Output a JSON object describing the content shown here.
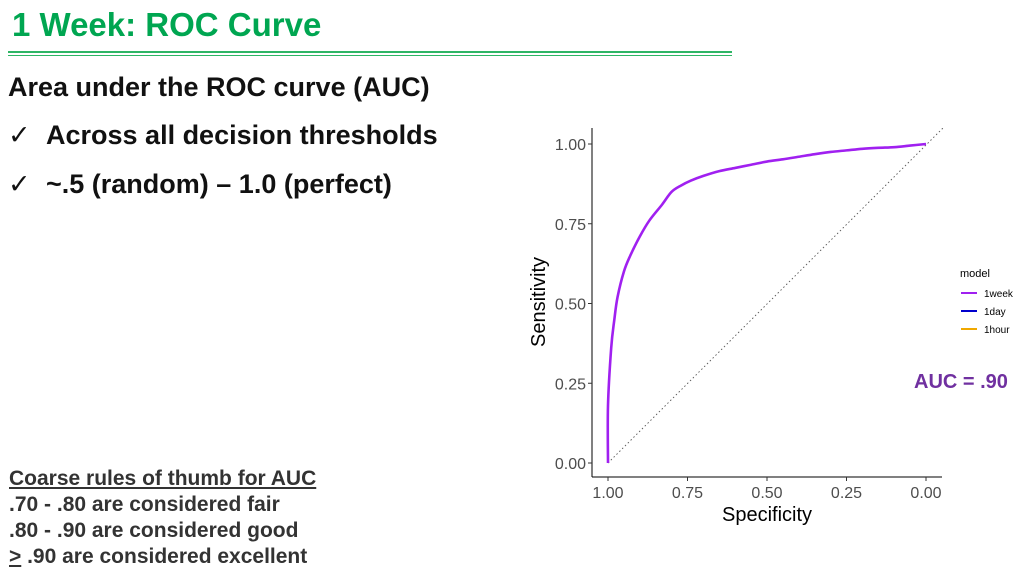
{
  "slide": {
    "title": "1 Week: ROC Curve",
    "heading": "Area under the ROC curve (AUC)",
    "bullets": [
      {
        "check": "✓",
        "text": "Across all decision thresholds"
      },
      {
        "check": "✓",
        "text": "~.5 (random) – 1.0 (perfect)"
      }
    ],
    "rules_of_thumb": {
      "title": "Coarse rules of thumb for AUC",
      "lines": [
        ".70 - .80 are considered fair",
        ".80 - .90 are considered good"
      ],
      "last_symbol": ">",
      "last_text": " .90 are considered excellent"
    },
    "auc_label": "AUC = .90",
    "title_color": "#00a651",
    "auc_color": "#7030a0"
  },
  "chart_data": {
    "type": "line",
    "xlabel": "Specificity",
    "ylabel": "Sensitivity",
    "x_reversed": true,
    "xlim": [
      1.0,
      0.0
    ],
    "ylim": [
      0.0,
      1.0
    ],
    "x_ticks": [
      "1.00",
      "0.75",
      "0.50",
      "0.25",
      "0.00"
    ],
    "y_ticks": [
      "0.00",
      "0.25",
      "0.50",
      "0.75",
      "1.00"
    ],
    "grid": false,
    "legend": {
      "title": "model",
      "placement": "right",
      "entries": [
        {
          "name": "1week",
          "color": "#a020f0"
        },
        {
          "name": "1day",
          "color": "#0000cd"
        },
        {
          "name": "1hour",
          "color": "#f0a800"
        }
      ]
    },
    "reference_line": {
      "from": [
        1.0,
        0.0
      ],
      "to": [
        0.0,
        1.0
      ],
      "style": "dotted"
    },
    "series": [
      {
        "name": "1week",
        "color": "#a020f0",
        "specificity": [
          1.0,
          1.0,
          0.99,
          0.98,
          0.97,
          0.95,
          0.93,
          0.9,
          0.87,
          0.83,
          0.8,
          0.77,
          0.74,
          0.7,
          0.65,
          0.6,
          0.55,
          0.5,
          0.45,
          0.4,
          0.35,
          0.3,
          0.25,
          0.2,
          0.15,
          0.1,
          0.05,
          0.0
        ],
        "sensitivity": [
          0.0,
          0.18,
          0.36,
          0.45,
          0.52,
          0.6,
          0.65,
          0.71,
          0.76,
          0.81,
          0.85,
          0.87,
          0.885,
          0.9,
          0.915,
          0.925,
          0.935,
          0.945,
          0.952,
          0.96,
          0.968,
          0.975,
          0.98,
          0.985,
          0.988,
          0.99,
          0.995,
          1.0
        ]
      }
    ]
  }
}
